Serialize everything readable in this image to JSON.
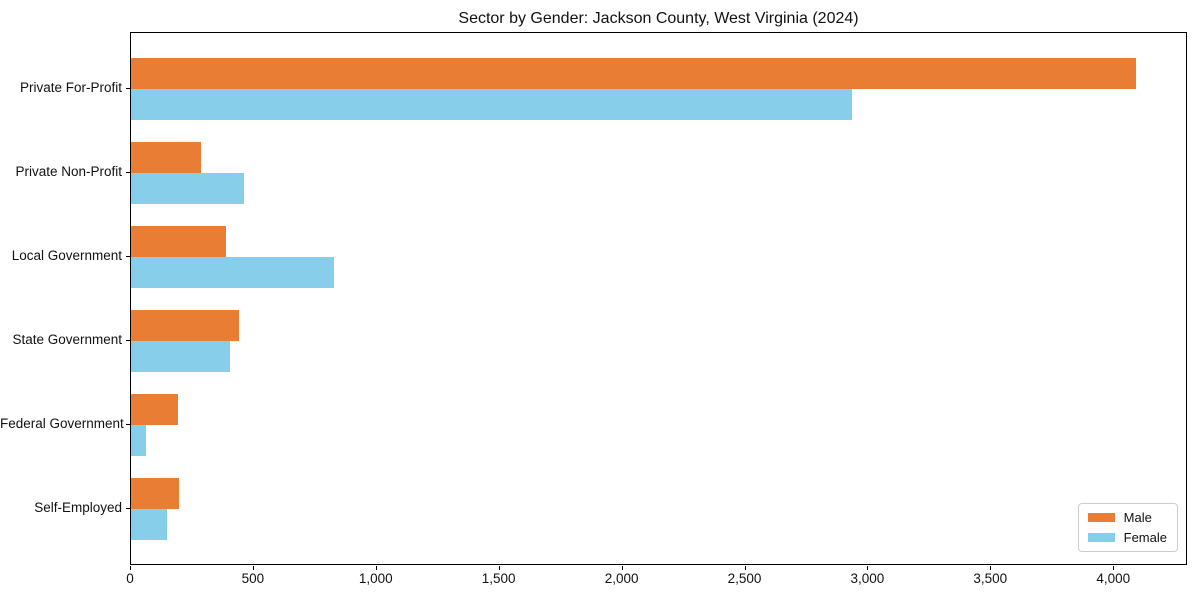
{
  "chart_data": {
    "type": "bar",
    "orientation": "horizontal",
    "title": "Sector by Gender: Jackson County, West Virginia (2024)",
    "categories": [
      "Private For-Profit",
      "Private Non-Profit",
      "Local Government",
      "State Government",
      "Federal Government",
      "Self-Employed"
    ],
    "series": [
      {
        "name": "Male",
        "color": "#E87D33",
        "values": [
          4087,
          285,
          386,
          439,
          191,
          195
        ]
      },
      {
        "name": "Female",
        "color": "#87CEEB",
        "values": [
          2932,
          460,
          826,
          403,
          61,
          146
        ]
      }
    ],
    "xlabel": "",
    "ylabel": "",
    "xlim": [
      0,
      4300
    ],
    "xticks": [
      {
        "value": 0,
        "label": "0"
      },
      {
        "value": 500,
        "label": "500"
      },
      {
        "value": 1000,
        "label": "1,000"
      },
      {
        "value": 1500,
        "label": "1,500"
      },
      {
        "value": 2000,
        "label": "2,000"
      },
      {
        "value": 2500,
        "label": "2,500"
      },
      {
        "value": 3000,
        "label": "3,000"
      },
      {
        "value": 3500,
        "label": "3,500"
      },
      {
        "value": 4000,
        "label": "4,000"
      }
    ],
    "grid": false,
    "legend": {
      "position": "lower right"
    }
  }
}
